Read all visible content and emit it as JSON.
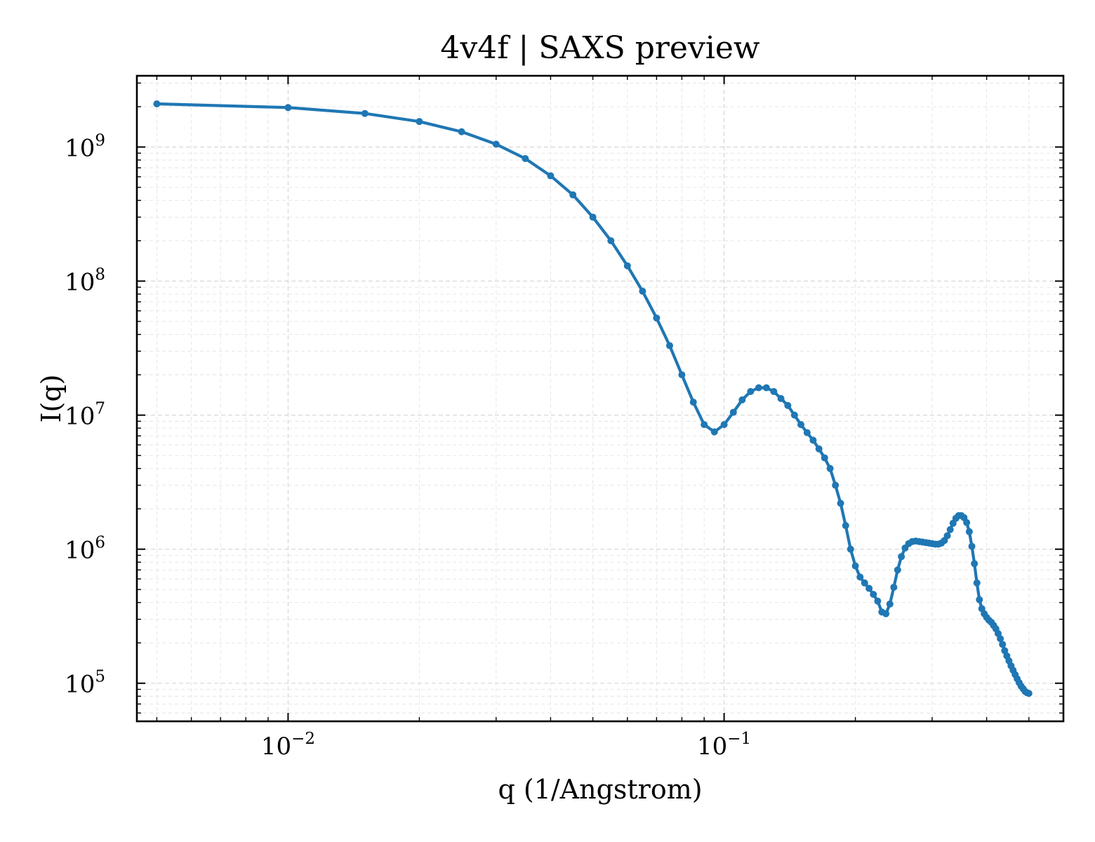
{
  "chart_data": {
    "type": "line",
    "title": "4v4f | SAXS preview",
    "xlabel": "q (1/Angstrom)",
    "ylabel": "I(q)",
    "xscale": "log",
    "yscale": "log",
    "xlim": [
      0.0045,
      0.6
    ],
    "ylim": [
      52000,
      3400000000
    ],
    "x_ticks": [
      {
        "value": 0.01,
        "base": "10",
        "exp": "−2"
      },
      {
        "value": 0.1,
        "base": "10",
        "exp": "−1"
      }
    ],
    "y_ticks": [
      {
        "value": 100000,
        "base": "10",
        "exp": "5"
      },
      {
        "value": 1000000,
        "base": "10",
        "exp": "6"
      },
      {
        "value": 10000000,
        "base": "10",
        "exp": "7"
      },
      {
        "value": 100000000,
        "base": "10",
        "exp": "8"
      },
      {
        "value": 1000000000,
        "base": "10",
        "exp": "9"
      }
    ],
    "grid": true,
    "line_color": "#1f77b4",
    "series": [
      {
        "x": [
          0.005,
          0.01,
          0.015,
          0.02,
          0.025,
          0.03,
          0.035,
          0.04,
          0.045,
          0.05,
          0.055,
          0.06,
          0.065,
          0.07,
          0.075,
          0.08,
          0.085,
          0.09,
          0.095,
          0.1,
          0.105,
          0.11,
          0.115,
          0.12,
          0.125,
          0.13,
          0.135,
          0.14,
          0.145,
          0.15,
          0.155,
          0.16,
          0.165,
          0.17,
          0.175,
          0.18,
          0.185,
          0.19,
          0.195,
          0.2,
          0.205,
          0.21,
          0.215,
          0.22,
          0.225,
          0.23,
          0.235,
          0.24,
          0.245,
          0.25,
          0.255,
          0.26,
          0.265,
          0.27,
          0.275,
          0.28,
          0.285,
          0.29,
          0.295,
          0.3,
          0.305,
          0.31,
          0.315,
          0.32,
          0.325,
          0.33,
          0.335,
          0.34,
          0.345,
          0.35,
          0.355,
          0.36,
          0.365,
          0.37,
          0.375,
          0.38,
          0.385,
          0.39,
          0.395,
          0.4,
          0.405,
          0.41,
          0.415,
          0.42,
          0.425,
          0.43,
          0.435,
          0.44,
          0.445,
          0.45,
          0.455,
          0.46,
          0.465,
          0.47,
          0.475,
          0.48,
          0.485,
          0.49,
          0.495,
          0.5
        ],
        "y": [
          2100000000,
          1970000000,
          1780000000,
          1550000000,
          1300000000,
          1050000000,
          820000000,
          610000000,
          440000000,
          300000000,
          200000000,
          130000000,
          84000000,
          53000000,
          33000000,
          20000000,
          12500000,
          8500000,
          7500000,
          8500000,
          10500000,
          13000000,
          15000000,
          16000000,
          16000000,
          15000000,
          13300000,
          11800000,
          10000000,
          8500000,
          7400000,
          6500000,
          5600000,
          4800000,
          4000000,
          3000000,
          2200000,
          1500000,
          1000000,
          750000,
          620000,
          560000,
          510000,
          460000,
          410000,
          340000,
          330000,
          390000,
          520000,
          700000,
          880000,
          1020000,
          1100000,
          1140000,
          1150000,
          1140000,
          1130000,
          1120000,
          1110000,
          1100000,
          1090000,
          1090000,
          1110000,
          1160000,
          1260000,
          1400000,
          1560000,
          1700000,
          1780000,
          1780000,
          1720000,
          1580000,
          1350000,
          1050000,
          780000,
          560000,
          420000,
          360000,
          330000,
          310000,
          295000,
          285000,
          270000,
          255000,
          235000,
          215000,
          195000,
          175000,
          160000,
          147000,
          135000,
          125000,
          116000,
          108000,
          101000,
          95000,
          91000,
          87000,
          85000,
          84000
        ]
      }
    ]
  }
}
